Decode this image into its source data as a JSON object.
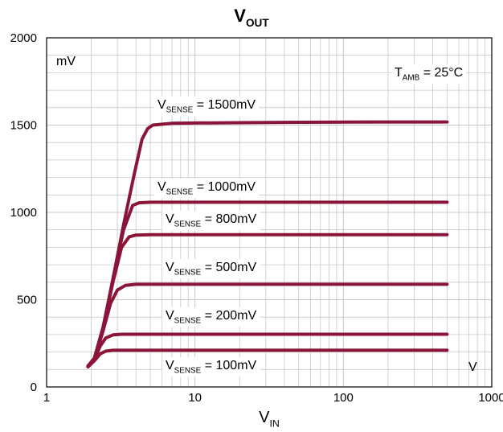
{
  "chart_data": {
    "type": "line",
    "title": {
      "main": "V",
      "sub": "OUT"
    },
    "xlabel": {
      "main": "V",
      "sub": "IN"
    },
    "x_scale": "log",
    "xlim": [
      1,
      1000
    ],
    "ylim": [
      0,
      2000
    ],
    "x_ticks": [
      "1",
      "10",
      "100",
      "1000"
    ],
    "y_ticks": [
      "0",
      "500",
      "1000",
      "1500",
      "2000"
    ],
    "y_unit": "mV",
    "x_unit": "V",
    "condition": {
      "pre": "T",
      "sub": "AMB",
      "post": " = 25°C"
    },
    "grid": true,
    "line_color": "#8b1538",
    "series": [
      {
        "name": {
          "pre": "V",
          "sub": "SENSE",
          "post": " = 1500mV"
        },
        "points": [
          [
            1.9,
            120
          ],
          [
            2.1,
            160
          ],
          [
            2.4,
            330
          ],
          [
            2.8,
            620
          ],
          [
            3.3,
            930
          ],
          [
            3.9,
            1220
          ],
          [
            4.4,
            1420
          ],
          [
            4.8,
            1480
          ],
          [
            5.2,
            1500
          ],
          [
            7,
            1510
          ],
          [
            10,
            1512
          ],
          [
            20,
            1514
          ],
          [
            50,
            1516
          ],
          [
            100,
            1517
          ],
          [
            200,
            1518
          ],
          [
            500,
            1518
          ]
        ]
      },
      {
        "name": {
          "pre": "V",
          "sub": "SENSE",
          "post": " = 1000mV"
        },
        "points": [
          [
            1.9,
            120
          ],
          [
            2.1,
            165
          ],
          [
            2.4,
            340
          ],
          [
            2.8,
            620
          ],
          [
            3.3,
            900
          ],
          [
            3.8,
            1040
          ],
          [
            4.2,
            1055
          ],
          [
            5,
            1058
          ],
          [
            10,
            1058
          ],
          [
            50,
            1058
          ],
          [
            100,
            1058
          ],
          [
            500,
            1058
          ]
        ]
      },
      {
        "name": {
          "pre": "V",
          "sub": "SENSE",
          "post": " = 800mV"
        },
        "points": [
          [
            1.9,
            120
          ],
          [
            2.1,
            165
          ],
          [
            2.4,
            340
          ],
          [
            2.8,
            600
          ],
          [
            3.2,
            800
          ],
          [
            3.6,
            860
          ],
          [
            4,
            870
          ],
          [
            5,
            872
          ],
          [
            10,
            872
          ],
          [
            100,
            872
          ],
          [
            500,
            872
          ]
        ]
      },
      {
        "name": {
          "pre": "V",
          "sub": "SENSE",
          "post": " = 500mV"
        },
        "points": [
          [
            1.9,
            120
          ],
          [
            2.1,
            160
          ],
          [
            2.4,
            320
          ],
          [
            2.7,
            480
          ],
          [
            3.0,
            555
          ],
          [
            3.4,
            582
          ],
          [
            4,
            588
          ],
          [
            10,
            588
          ],
          [
            100,
            588
          ],
          [
            500,
            588
          ]
        ]
      },
      {
        "name": {
          "pre": "V",
          "sub": "SENSE",
          "post": " = 200mV"
        },
        "points": [
          [
            1.9,
            115
          ],
          [
            2.1,
            160
          ],
          [
            2.3,
            235
          ],
          [
            2.5,
            280
          ],
          [
            2.8,
            298
          ],
          [
            3.2,
            302
          ],
          [
            10,
            302
          ],
          [
            100,
            302
          ],
          [
            500,
            302
          ]
        ]
      },
      {
        "name": {
          "pre": "V",
          "sub": "SENSE",
          "post": " = 100mV"
        },
        "points": [
          [
            1.9,
            115
          ],
          [
            2.1,
            150
          ],
          [
            2.3,
            190
          ],
          [
            2.5,
            205
          ],
          [
            2.8,
            210
          ],
          [
            10,
            210
          ],
          [
            100,
            210
          ],
          [
            500,
            210
          ]
        ]
      }
    ]
  }
}
